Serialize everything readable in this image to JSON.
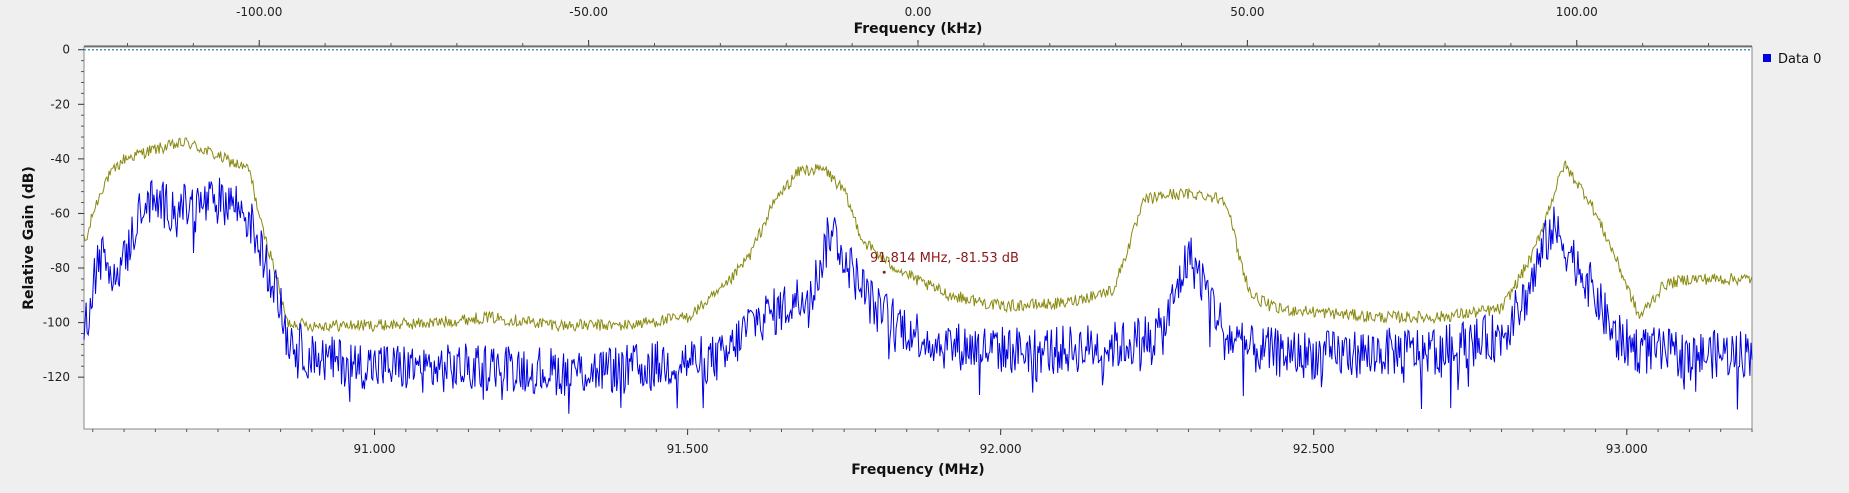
{
  "chart_data": {
    "type": "line",
    "top_axis": {
      "label": "Frequency (kHz)",
      "ticks": [
        -100.0,
        -50.0,
        0.0,
        50.0,
        100.0
      ],
      "tick_labels": [
        "-100.00",
        "-50.00",
        "0.00",
        "50.00",
        "100.00"
      ],
      "range": [
        -126.6,
        126.6
      ]
    },
    "x_axis": {
      "label": "Frequency (MHz)",
      "ticks": [
        91.0,
        91.5,
        92.0,
        92.5,
        93.0
      ],
      "tick_labels": [
        "91.000",
        "91.500",
        "92.000",
        "92.500",
        "93.000"
      ],
      "range": [
        90.536,
        93.2
      ]
    },
    "y_axis": {
      "label": "Relative Gain (dB)",
      "ticks": [
        0,
        -20,
        -40,
        -60,
        -80,
        -100,
        -120
      ],
      "tick_labels": [
        "0",
        "-20",
        "-40",
        "-60",
        "-80",
        "-100",
        "-120"
      ],
      "range": [
        -139,
        1
      ]
    },
    "reference_line": {
      "value": 0,
      "color": "#2b8aa6"
    },
    "marker": {
      "text": "91.814 MHz, -81.53 dB",
      "x": 91.814,
      "y": -81.53,
      "color": "#8b1a1a"
    },
    "legend": {
      "position": "top-right",
      "entries": [
        "Data 0"
      ]
    },
    "series": [
      {
        "name": "Data 0",
        "color": "#0000e0",
        "x": [
          90.54,
          90.55,
          90.56,
          90.58,
          90.6,
          90.63,
          90.66,
          90.7,
          90.74,
          90.77,
          90.8,
          90.82,
          90.84,
          90.86,
          90.9,
          91.0,
          91.1,
          91.2,
          91.3,
          91.4,
          91.5,
          91.56,
          91.6,
          91.65,
          91.7,
          91.73,
          91.76,
          91.8,
          91.85,
          91.9,
          92.0,
          92.1,
          92.2,
          92.26,
          92.3,
          92.33,
          92.36,
          92.4,
          92.5,
          92.6,
          92.7,
          92.8,
          92.84,
          92.88,
          92.92,
          92.95,
          92.98,
          93.02,
          93.1,
          93.2
        ],
        "y": [
          -100,
          -85,
          -75,
          -80,
          -78,
          -55,
          -57,
          -58,
          -56,
          -55,
          -62,
          -75,
          -85,
          -105,
          -113,
          -116,
          -117,
          -116,
          -118,
          -117,
          -114,
          -113,
          -100,
          -95,
          -88,
          -65,
          -80,
          -95,
          -102,
          -108,
          -110,
          -110,
          -108,
          -103,
          -75,
          -88,
          -105,
          -110,
          -112,
          -111,
          -110,
          -105,
          -90,
          -65,
          -78,
          -90,
          -105,
          -110,
          -112,
          -111
        ]
      },
      {
        "color": "#8b8b14",
        "x": [
          90.54,
          90.55,
          90.57,
          90.6,
          90.64,
          90.7,
          90.76,
          90.8,
          90.82,
          90.84,
          90.86,
          90.9,
          91.0,
          91.1,
          91.18,
          91.3,
          91.4,
          91.5,
          91.56,
          91.6,
          91.64,
          91.68,
          91.72,
          91.75,
          91.78,
          91.82,
          91.87,
          91.92,
          92.0,
          92.1,
          92.18,
          92.2,
          92.23,
          92.27,
          92.32,
          92.36,
          92.38,
          92.4,
          92.44,
          92.5,
          92.6,
          92.7,
          92.8,
          92.85,
          92.9,
          92.94,
          92.98,
          93.02,
          93.06,
          93.1,
          93.2
        ],
        "y": [
          -70,
          -60,
          -48,
          -40,
          -37,
          -34,
          -40,
          -44,
          -65,
          -80,
          -100,
          -101,
          -101,
          -100,
          -98,
          -101,
          -101,
          -98,
          -87,
          -75,
          -55,
          -44,
          -44,
          -52,
          -70,
          -78,
          -85,
          -90,
          -94,
          -93,
          -88,
          -75,
          -55,
          -53,
          -53,
          -55,
          -75,
          -90,
          -95,
          -96,
          -98,
          -98,
          -95,
          -75,
          -42,
          -55,
          -75,
          -98,
          -86,
          -84,
          -84
        ]
      }
    ]
  }
}
